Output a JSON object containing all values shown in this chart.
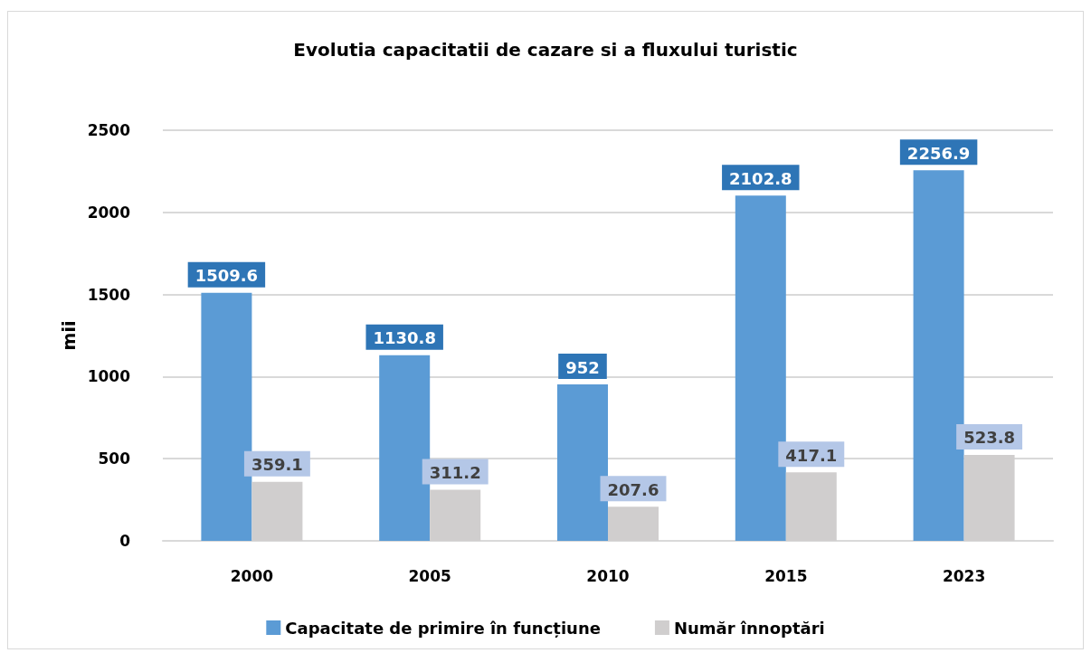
{
  "chart_data": {
    "type": "bar",
    "title": "Evolutia capacitatii de cazare si a fluxului turistic",
    "ylabel": "mii",
    "categories": [
      "2000",
      "2005",
      "2010",
      "2015",
      "2023"
    ],
    "series": [
      {
        "name": "Capacitate de primire în funcțiune",
        "color": "#5b9bd5",
        "values": [
          1509.6,
          1130.8,
          952,
          2102.8,
          2256.9
        ]
      },
      {
        "name": "Număr înnoptări",
        "color": "#d0cece",
        "values": [
          359.1,
          311.2,
          207.6,
          417.1,
          523.8
        ]
      }
    ],
    "ylim": [
      0,
      2500
    ],
    "yticks": [
      0,
      500,
      1000,
      1500,
      2000,
      2500
    ],
    "grid": "y",
    "legend": "bottom",
    "data_labels": true
  }
}
